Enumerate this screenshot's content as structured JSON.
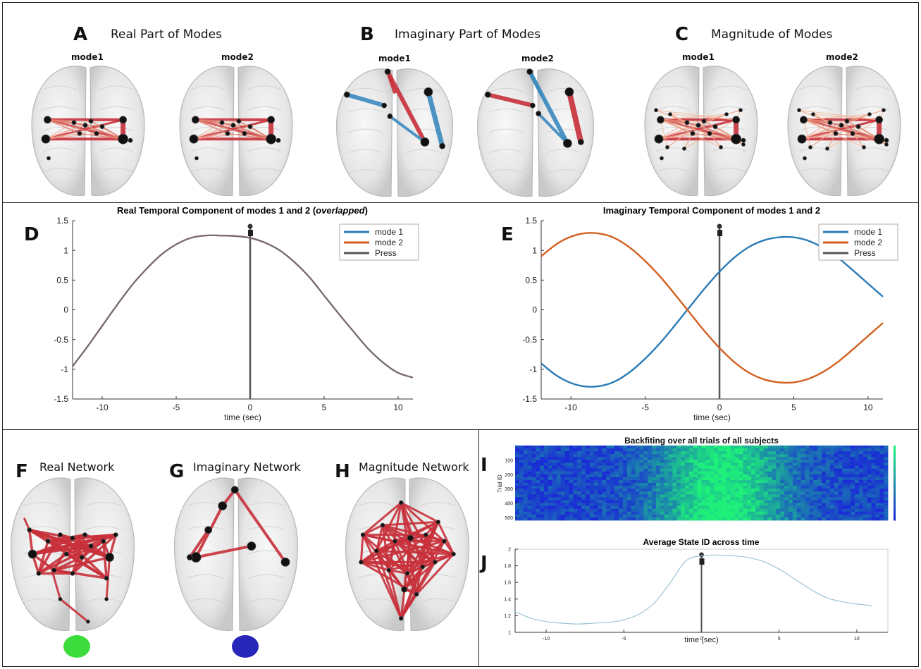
{
  "panels": {
    "A": {
      "letter": "A",
      "title": "Real Part of Modes",
      "mode1": "mode1",
      "mode2": "mode2"
    },
    "B": {
      "letter": "B",
      "title": "Imaginary Part of Modes",
      "mode1": "mode1",
      "mode2": "mode2"
    },
    "C": {
      "letter": "C",
      "title": "Magnitude of Modes",
      "mode1": "mode1",
      "mode2": "mode2"
    },
    "D": {
      "letter": "D"
    },
    "E": {
      "letter": "E"
    },
    "F": {
      "letter": "F",
      "title": "Real Network"
    },
    "G": {
      "letter": "G",
      "title": "Imaginary Network"
    },
    "H": {
      "letter": "H",
      "title": "Magnitude Network"
    },
    "I": {
      "letter": "I"
    },
    "J": {
      "letter": "J"
    }
  },
  "colors": {
    "mode1": "#2a7bb6",
    "mode2": "#d35f1f",
    "press": "#555555",
    "overlap": "#7a6b6b",
    "edge_red": "#c8303a",
    "edge_blue": "#3b8ac0",
    "green_state": "#3ddc3d",
    "blue_state": "#2626b8",
    "heat_low": "#1a2ad6",
    "heat_high": "#1ef07a",
    "avg_line": "#9ec4d4"
  },
  "chart_data": [
    {
      "id": "D",
      "type": "line",
      "title_prefix": "Real Temporal Component  of modes 1 and 2 (",
      "title_italic": "overlapped",
      "title_suffix": ")",
      "xlabel": "time (sec)",
      "ylabel": "",
      "xlim": [
        -12,
        11
      ],
      "ylim": [
        -1.5,
        1.5
      ],
      "xticks": [
        -10,
        -5,
        0,
        5,
        10
      ],
      "yticks": [
        -1.5,
        -1,
        -0.5,
        0,
        0.5,
        1,
        1.5
      ],
      "yticklabels": [
        "-1.5",
        "-1",
        "-0.5",
        "0",
        "0.5",
        "1",
        "1.5"
      ],
      "legend": [
        "mode 1",
        "mode 2",
        "Press"
      ],
      "legend_position": "top-right",
      "press_x": 0,
      "series": [
        {
          "name": "mode 1",
          "x": [
            -12,
            -11,
            -10,
            -9,
            -8,
            -7,
            -6,
            -5,
            -4,
            -3,
            -2,
            -1,
            0,
            1,
            2,
            3,
            4,
            5,
            6,
            7,
            8,
            9,
            10,
            11
          ],
          "y": [
            -0.95,
            -0.62,
            -0.27,
            0.08,
            0.41,
            0.69,
            0.93,
            1.1,
            1.21,
            1.25,
            1.25,
            1.24,
            1.21,
            1.13,
            1.0,
            0.8,
            0.55,
            0.24,
            -0.07,
            -0.37,
            -0.66,
            -0.89,
            -1.06,
            -1.14
          ]
        },
        {
          "name": "mode 2",
          "x": [
            -12,
            -11,
            -10,
            -9,
            -8,
            -7,
            -6,
            -5,
            -4,
            -3,
            -2,
            -1,
            0,
            1,
            2,
            3,
            4,
            5,
            6,
            7,
            8,
            9,
            10,
            11
          ],
          "y": [
            -0.95,
            -0.62,
            -0.27,
            0.08,
            0.41,
            0.69,
            0.93,
            1.1,
            1.21,
            1.25,
            1.25,
            1.24,
            1.21,
            1.13,
            1.0,
            0.8,
            0.55,
            0.24,
            -0.07,
            -0.37,
            -0.66,
            -0.89,
            -1.06,
            -1.14
          ]
        }
      ]
    },
    {
      "id": "E",
      "type": "line",
      "title_prefix": "Imaginary Temporal Component  of modes 1 and 2",
      "title_italic": "",
      "title_suffix": "",
      "xlabel": "time (sec)",
      "ylabel": "",
      "xlim": [
        -12,
        11
      ],
      "ylim": [
        -1.5,
        1.5
      ],
      "xticks": [
        -10,
        -5,
        0,
        5,
        10
      ],
      "yticks": [
        -1.5,
        -1,
        -0.5,
        0,
        0.5,
        1,
        1.5
      ],
      "yticklabels": [
        "-1.5",
        "-1",
        "-0.5",
        "0",
        "0.5",
        "1",
        "1.5"
      ],
      "legend": [
        "mode 1",
        "mode 2",
        "Press"
      ],
      "legend_position": "top-right",
      "press_x": 0,
      "series": [
        {
          "name": "mode 1",
          "x": [
            -12,
            -11,
            -10,
            -9,
            -8,
            -7,
            -6,
            -5,
            -4,
            -3,
            -2,
            -1,
            0,
            1,
            2,
            3,
            4,
            5,
            6,
            7,
            8,
            9,
            10,
            11
          ],
          "y": [
            -0.9,
            -1.1,
            -1.23,
            -1.29,
            -1.28,
            -1.2,
            -1.04,
            -0.82,
            -0.56,
            -0.26,
            0.05,
            0.36,
            0.64,
            0.88,
            1.06,
            1.17,
            1.22,
            1.22,
            1.16,
            1.04,
            0.87,
            0.66,
            0.44,
            0.22
          ]
        },
        {
          "name": "mode 2",
          "x": [
            -12,
            -11,
            -10,
            -9,
            -8,
            -7,
            -6,
            -5,
            -4,
            -3,
            -2,
            -1,
            0,
            1,
            2,
            3,
            4,
            5,
            6,
            7,
            8,
            9,
            10,
            11
          ],
          "y": [
            0.9,
            1.1,
            1.23,
            1.29,
            1.28,
            1.2,
            1.04,
            0.82,
            0.56,
            0.26,
            -0.05,
            -0.36,
            -0.64,
            -0.88,
            -1.06,
            -1.17,
            -1.22,
            -1.22,
            -1.16,
            -1.04,
            -0.87,
            -0.66,
            -0.44,
            -0.22
          ]
        }
      ]
    },
    {
      "id": "I",
      "type": "heatmap",
      "title": "Backfiting over all trials of all subjects",
      "ylabel": "Trial ID",
      "yticks": [
        100,
        200,
        300,
        400,
        500
      ],
      "ylim": [
        0,
        520
      ]
    },
    {
      "id": "J",
      "type": "line",
      "title": "Average State ID across time",
      "xlabel": "time (sec)",
      "xlim": [
        -12,
        12
      ],
      "ylim": [
        1,
        2
      ],
      "xticks": [
        -10,
        -5,
        0,
        5,
        10
      ],
      "yticks": [
        1,
        1.2,
        1.4,
        1.6,
        1.8,
        2
      ],
      "yticklabels": [
        "1",
        "1.2",
        "1.4",
        "1.6",
        "1.8",
        "2"
      ],
      "press_x": 0,
      "series": [
        {
          "x": [
            -12,
            -11,
            -10,
            -9,
            -8,
            -7,
            -6,
            -5,
            -4,
            -3,
            -2,
            -1,
            0,
            1,
            2,
            3,
            4,
            5,
            6,
            7,
            8,
            9,
            10,
            11
          ],
          "y": [
            1.25,
            1.17,
            1.13,
            1.11,
            1.1,
            1.11,
            1.12,
            1.15,
            1.22,
            1.36,
            1.6,
            1.86,
            1.92,
            1.93,
            1.92,
            1.9,
            1.85,
            1.76,
            1.64,
            1.52,
            1.42,
            1.37,
            1.34,
            1.32
          ]
        }
      ]
    }
  ]
}
